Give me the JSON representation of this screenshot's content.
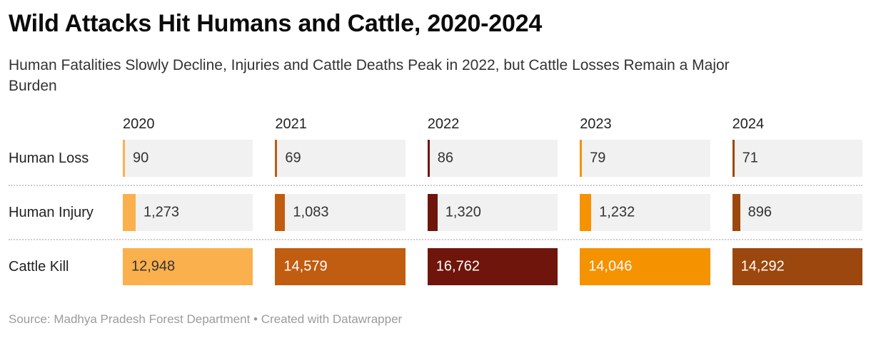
{
  "header": {
    "title": "Wild Attacks Hit Humans and Cattle, 2020-2024",
    "subtitle": "Human Fatalities Slowly Decline, Injuries and Cattle Deaths Peak in 2022, but Cattle Losses Remain a Major Burden"
  },
  "chart_data": {
    "type": "bar",
    "layout": "table-bar-chart, rows are categories, columns are years, bars scaled to per-column max",
    "categories": [
      "2020",
      "2021",
      "2022",
      "2023",
      "2024"
    ],
    "series": [
      {
        "name": "Human Loss",
        "values": [
          90,
          69,
          86,
          79,
          71
        ],
        "labels": [
          "90",
          "69",
          "86",
          "79",
          "71"
        ],
        "label_inside": false
      },
      {
        "name": "Human Injury",
        "values": [
          1273,
          1083,
          1320,
          1232,
          896
        ],
        "labels": [
          "1,273",
          "1,083",
          "1,320",
          "1,232",
          "896"
        ],
        "label_inside": false
      },
      {
        "name": "Cattle Kill",
        "values": [
          12948,
          14579,
          16762,
          14046,
          14292
        ],
        "labels": [
          "12,948",
          "14,579",
          "16,762",
          "14,046",
          "14,292"
        ],
        "label_inside": true
      }
    ],
    "column_colors": [
      "#FBB04E",
      "#C05D10",
      "#6F150B",
      "#F59200",
      "#9C470D"
    ],
    "label_colors_on_bar": [
      "#333333",
      "#ffffff",
      "#ffffff",
      "#ffffff",
      "#ffffff"
    ],
    "track_color": "#f1f1f1",
    "grid": false,
    "legend_position": "none"
  },
  "footer": {
    "source_label": "Source:",
    "source_name": "Madhya Pradesh Forest Department",
    "separator": "•",
    "credit": "Created with Datawrapper"
  }
}
